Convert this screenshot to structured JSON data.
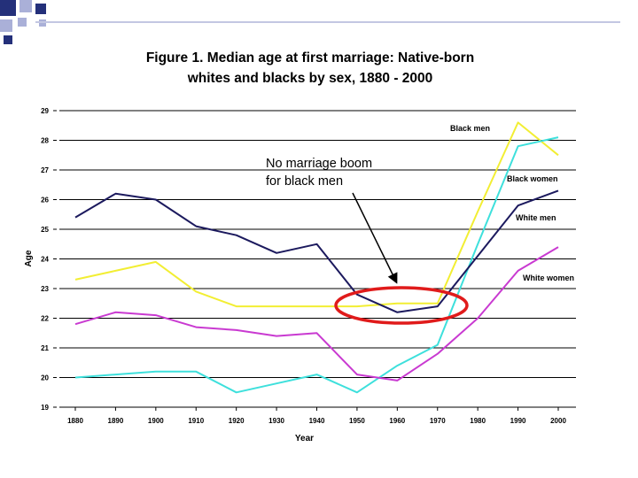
{
  "slide": {
    "title_line1": "Figure 1. Median age at first marriage: Native-born",
    "title_line2": "whites and blacks by sex, 1880 - 2000"
  },
  "annotation": {
    "line1": "No marriage boom",
    "line2": "for black men",
    "arrow_color": "#000000",
    "ellipse_color": "#e01b1b"
  },
  "chart_data": {
    "type": "line",
    "title": "",
    "xlabel": "Year",
    "ylabel": "Age",
    "ylim": [
      19,
      29
    ],
    "yticks": [
      19,
      20,
      21,
      22,
      23,
      24,
      25,
      26,
      27,
      28,
      29
    ],
    "x": [
      1880,
      1890,
      1900,
      1910,
      1920,
      1930,
      1940,
      1950,
      1960,
      1970,
      1980,
      1990,
      2000
    ],
    "grid": true,
    "series": [
      {
        "name": "Black men",
        "color": "#f2ee33",
        "values": [
          23.3,
          23.6,
          23.9,
          22.9,
          22.4,
          22.4,
          22.4,
          22.4,
          22.5,
          22.5,
          25.6,
          28.6,
          27.5
        ]
      },
      {
        "name": "Black women",
        "color": "#3ee0dc",
        "values": [
          20.0,
          20.1,
          20.2,
          20.2,
          19.5,
          19.8,
          20.1,
          19.5,
          20.4,
          21.1,
          24.5,
          27.8,
          28.1
        ]
      },
      {
        "name": "White men",
        "color": "#1c1a5e",
        "values": [
          25.4,
          26.2,
          26.0,
          25.1,
          24.8,
          24.2,
          24.5,
          22.8,
          22.2,
          22.4,
          24.1,
          25.8,
          26.3
        ]
      },
      {
        "name": "White women",
        "color": "#c93ad1",
        "values": [
          21.8,
          22.2,
          22.1,
          21.7,
          21.6,
          21.4,
          21.5,
          20.1,
          19.9,
          20.8,
          22.0,
          23.6,
          24.4
        ]
      }
    ]
  }
}
